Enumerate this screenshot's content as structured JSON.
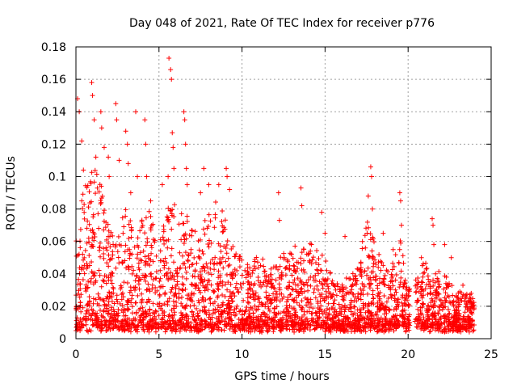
{
  "chart_data": {
    "type": "scatter",
    "title": "Day 048 of 2021, Rate Of TEC Index for receiver p776",
    "xlabel": "GPS time / hours",
    "ylabel": "ROTI / TECUs",
    "xlim": [
      0,
      25
    ],
    "ylim": [
      0,
      0.18
    ],
    "xticks": [
      0,
      5,
      10,
      15,
      20,
      25
    ],
    "xtick_labels": [
      "0",
      "5",
      "10",
      "15",
      "20",
      "25"
    ],
    "yticks": [
      0,
      0.02,
      0.04,
      0.06,
      0.08,
      0.1,
      0.12,
      0.14,
      0.16,
      0.18
    ],
    "ytick_labels": [
      "0",
      "0.02",
      "0.04",
      "0.06",
      "0.08",
      "0.1",
      "0.12",
      "0.14",
      "0.16",
      "0.18"
    ],
    "grid": true,
    "marker": "+",
    "color": "#ff0000",
    "data_range_hours": [
      0,
      24
    ],
    "envelope_hours": [
      0,
      0.5,
      1.0,
      1.5,
      2.0,
      2.5,
      3.0,
      3.5,
      4.0,
      4.5,
      5.0,
      5.5,
      6.0,
      6.5,
      7.0,
      7.5,
      8.0,
      8.5,
      9.0,
      9.5,
      10.0,
      10.5,
      11.0,
      11.5,
      12.0,
      12.5,
      13.0,
      13.5,
      14.0,
      14.5,
      15.0,
      15.5,
      16.0,
      16.5,
      17.0,
      17.5,
      18.0,
      18.5,
      19.0,
      19.5,
      20.0,
      20.5,
      21.0,
      21.5,
      22.0,
      22.5,
      23.0,
      23.5,
      24.0
    ],
    "envelope_max": [
      0.065,
      0.1,
      0.11,
      0.1,
      0.07,
      0.065,
      0.09,
      0.07,
      0.075,
      0.08,
      0.06,
      0.08,
      0.085,
      0.08,
      0.07,
      0.065,
      0.085,
      0.085,
      0.075,
      0.055,
      0.05,
      0.045,
      0.055,
      0.045,
      0.045,
      0.06,
      0.06,
      0.055,
      0.06,
      0.055,
      0.05,
      0.035,
      0.035,
      0.04,
      0.045,
      0.075,
      0.06,
      0.05,
      0.045,
      0.065,
      0.03,
      0.04,
      0.05,
      0.04,
      0.045,
      0.035,
      0.03,
      0.03,
      0.028
    ],
    "peaks": [
      {
        "x": 0.1,
        "y": 0.148
      },
      {
        "x": 0.2,
        "y": 0.14
      },
      {
        "x": 0.35,
        "y": 0.122
      },
      {
        "x": 0.45,
        "y": 0.104
      },
      {
        "x": 0.95,
        "y": 0.158
      },
      {
        "x": 1.0,
        "y": 0.15
      },
      {
        "x": 1.1,
        "y": 0.135
      },
      {
        "x": 1.2,
        "y": 0.112
      },
      {
        "x": 1.5,
        "y": 0.14
      },
      {
        "x": 1.55,
        "y": 0.13
      },
      {
        "x": 1.7,
        "y": 0.118
      },
      {
        "x": 1.95,
        "y": 0.112
      },
      {
        "x": 2.0,
        "y": 0.1
      },
      {
        "x": 2.4,
        "y": 0.145
      },
      {
        "x": 2.45,
        "y": 0.135
      },
      {
        "x": 2.6,
        "y": 0.11
      },
      {
        "x": 3.0,
        "y": 0.128
      },
      {
        "x": 3.1,
        "y": 0.12
      },
      {
        "x": 3.15,
        "y": 0.108
      },
      {
        "x": 3.3,
        "y": 0.09
      },
      {
        "x": 3.6,
        "y": 0.14
      },
      {
        "x": 3.7,
        "y": 0.1
      },
      {
        "x": 4.15,
        "y": 0.135
      },
      {
        "x": 4.2,
        "y": 0.12
      },
      {
        "x": 4.25,
        "y": 0.1
      },
      {
        "x": 4.5,
        "y": 0.085
      },
      {
        "x": 5.2,
        "y": 0.095
      },
      {
        "x": 5.55,
        "y": 0.1
      },
      {
        "x": 5.6,
        "y": 0.173
      },
      {
        "x": 5.7,
        "y": 0.166
      },
      {
        "x": 5.75,
        "y": 0.16
      },
      {
        "x": 5.8,
        "y": 0.127
      },
      {
        "x": 5.85,
        "y": 0.118
      },
      {
        "x": 5.9,
        "y": 0.105
      },
      {
        "x": 6.5,
        "y": 0.14
      },
      {
        "x": 6.55,
        "y": 0.135
      },
      {
        "x": 6.6,
        "y": 0.12
      },
      {
        "x": 6.65,
        "y": 0.105
      },
      {
        "x": 6.7,
        "y": 0.095
      },
      {
        "x": 7.5,
        "y": 0.09
      },
      {
        "x": 7.7,
        "y": 0.105
      },
      {
        "x": 8.0,
        "y": 0.095
      },
      {
        "x": 8.6,
        "y": 0.095
      },
      {
        "x": 9.05,
        "y": 0.105
      },
      {
        "x": 9.1,
        "y": 0.1
      },
      {
        "x": 9.25,
        "y": 0.092
      },
      {
        "x": 12.2,
        "y": 0.09
      },
      {
        "x": 12.25,
        "y": 0.073
      },
      {
        "x": 13.55,
        "y": 0.093
      },
      {
        "x": 13.6,
        "y": 0.082
      },
      {
        "x": 14.8,
        "y": 0.078
      },
      {
        "x": 15.0,
        "y": 0.065
      },
      {
        "x": 16.2,
        "y": 0.063
      },
      {
        "x": 17.6,
        "y": 0.088
      },
      {
        "x": 17.75,
        "y": 0.106
      },
      {
        "x": 17.8,
        "y": 0.1
      },
      {
        "x": 17.85,
        "y": 0.08
      },
      {
        "x": 18.5,
        "y": 0.065
      },
      {
        "x": 19.1,
        "y": 0.055
      },
      {
        "x": 19.5,
        "y": 0.09
      },
      {
        "x": 19.55,
        "y": 0.085
      },
      {
        "x": 19.6,
        "y": 0.07
      },
      {
        "x": 20.8,
        "y": 0.05
      },
      {
        "x": 21.45,
        "y": 0.074
      },
      {
        "x": 21.5,
        "y": 0.07
      },
      {
        "x": 21.55,
        "y": 0.058
      },
      {
        "x": 22.2,
        "y": 0.058
      },
      {
        "x": 22.6,
        "y": 0.05
      },
      {
        "x": 23.3,
        "y": 0.033
      },
      {
        "x": 23.8,
        "y": 0.028
      }
    ],
    "gap_hours": [
      [
        20.1,
        20.4
      ]
    ]
  }
}
